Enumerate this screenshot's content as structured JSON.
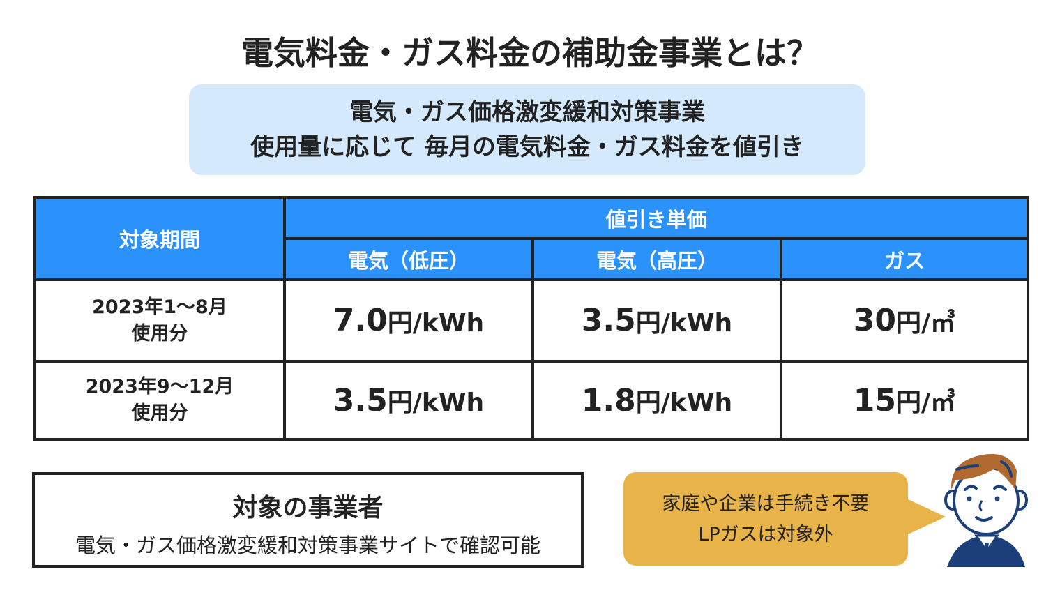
{
  "title": "電気料金・ガス料金の補助金事業とは？",
  "summary": {
    "line1": "電気・ガス価格激変緩和対策事業",
    "line2": "使用量に応じて 毎月の電気料金・ガス料金を値引き"
  },
  "table": {
    "period_header": "対象期間",
    "discount_header": "値引き単価",
    "columns": [
      "電気（低圧）",
      "電気（高圧）",
      "ガス"
    ],
    "rows": [
      {
        "period": "2023年1〜8月",
        "period_sub": "使用分",
        "values": [
          {
            "num": "7.0",
            "unit": "円/kWh"
          },
          {
            "num": "3.5",
            "unit": "円/kWh"
          },
          {
            "num": "30",
            "unit": "円/㎥"
          }
        ]
      },
      {
        "period": "2023年9〜12月",
        "period_sub": "使用分",
        "values": [
          {
            "num": "3.5",
            "unit": "円/kWh"
          },
          {
            "num": "1.8",
            "unit": "円/kWh"
          },
          {
            "num": "15",
            "unit": "円/㎥"
          }
        ]
      }
    ]
  },
  "business": {
    "heading": "対象の事業者",
    "text": "電気・ガス価格激変緩和対策事業サイトで確認可能"
  },
  "bubble": {
    "line1": "家庭や企業は手続き不要",
    "line2": "LPガスは対象外"
  },
  "colors": {
    "header_blue": "#2a92fa",
    "summary_bg": "#d5e9fc",
    "bubble": "#e8b348",
    "suit": "#1c3f7a",
    "hair": "#b0692e"
  }
}
